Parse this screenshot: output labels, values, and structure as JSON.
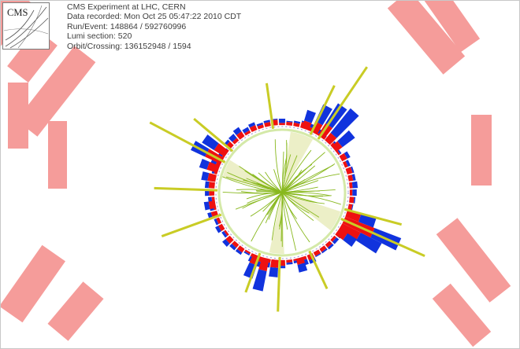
{
  "event_info": {
    "title": "CMS Experiment at LHC, CERN",
    "recorded": "Data recorded: Mon Oct 25 05:47:22 2010 CDT",
    "run_event": "Run/Event: 148864 / 592760996",
    "lumi": "Lumi section: 520",
    "orbit": "Orbit/Crossing: 136152948 / 1594"
  },
  "logo": {
    "text": "CMS",
    "icon": "cms-logo-icon"
  },
  "colors": {
    "muon_chamber": "#f59c9a",
    "ecal": "#ee1111",
    "hcal": "#1133dd",
    "track": "#88b81e",
    "jet": "#c9cc25",
    "jet_cone": "#e6eab4",
    "tracker_circle": "#d4e9a8"
  }
}
